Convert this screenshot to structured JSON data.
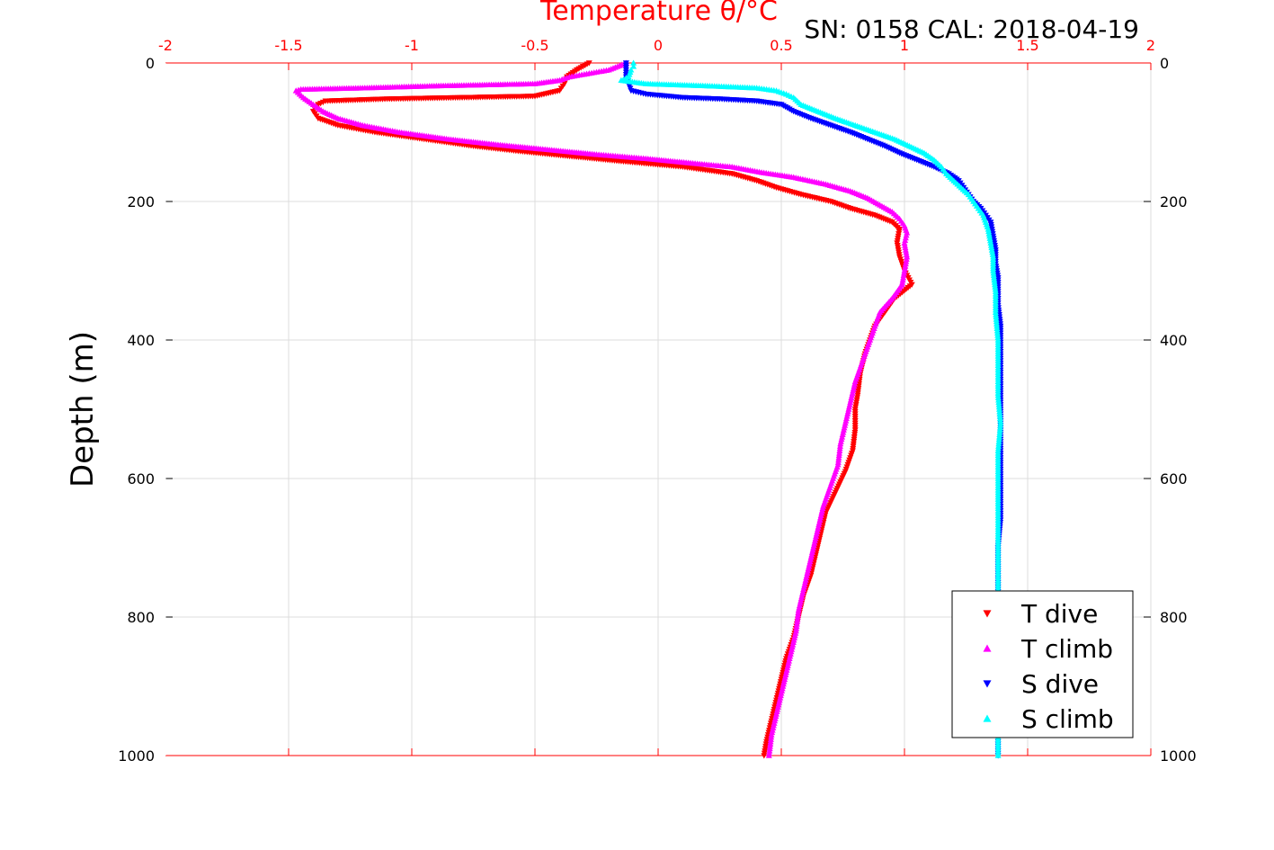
{
  "chart_data": {
    "type": "scatter",
    "title": "Temperature θ/°C",
    "subtitle": "SN: 0158  CAL: 2018-04-19",
    "xlabel": "Temperature θ/°C",
    "ylabel": "Depth (m)",
    "xlim": [
      -2,
      2
    ],
    "ylim": [
      0,
      1000
    ],
    "y_reversed": true,
    "grid": true,
    "legend_position": "bottom-right",
    "x_ticks": [
      "-2",
      "-1.5",
      "-1",
      "-0.5",
      "0",
      "0.5",
      "1",
      "1.5",
      "2"
    ],
    "y_ticks": [
      "0",
      "200",
      "400",
      "600",
      "800",
      "1000"
    ],
    "colors": {
      "t_dive": "#ff0000",
      "t_climb": "#ff00ff",
      "s_dive": "#0000ff",
      "s_climb": "#00ffff",
      "axis_top": "#ff0000",
      "axis_left": "#000000"
    },
    "series": [
      {
        "name": "T dive",
        "marker": "triangle-down",
        "color": "#ff0000",
        "points": [
          [
            -0.28,
            0
          ],
          [
            -0.33,
            10
          ],
          [
            -0.37,
            20
          ],
          [
            -0.38,
            30
          ],
          [
            -0.4,
            40
          ],
          [
            -0.5,
            48
          ],
          [
            -1.1,
            52
          ],
          [
            -1.35,
            55
          ],
          [
            -1.38,
            60
          ],
          [
            -1.4,
            70
          ],
          [
            -1.38,
            80
          ],
          [
            -1.3,
            90
          ],
          [
            -1.15,
            100
          ],
          [
            -0.95,
            110
          ],
          [
            -0.75,
            120
          ],
          [
            -0.55,
            128
          ],
          [
            -0.35,
            135
          ],
          [
            -0.15,
            142
          ],
          [
            0.1,
            150
          ],
          [
            0.3,
            160
          ],
          [
            0.4,
            170
          ],
          [
            0.48,
            180
          ],
          [
            0.58,
            190
          ],
          [
            0.7,
            200
          ],
          [
            0.78,
            210
          ],
          [
            0.88,
            220
          ],
          [
            0.95,
            230
          ],
          [
            0.98,
            240
          ],
          [
            0.97,
            260
          ],
          [
            0.98,
            280
          ],
          [
            1.0,
            300
          ],
          [
            1.03,
            320
          ],
          [
            0.96,
            340
          ],
          [
            0.92,
            360
          ],
          [
            0.88,
            380
          ],
          [
            0.86,
            400
          ],
          [
            0.84,
            420
          ],
          [
            0.82,
            450
          ],
          [
            0.81,
            480
          ],
          [
            0.8,
            500
          ],
          [
            0.8,
            530
          ],
          [
            0.79,
            560
          ],
          [
            0.76,
            590
          ],
          [
            0.72,
            620
          ],
          [
            0.68,
            650
          ],
          [
            0.66,
            680
          ],
          [
            0.64,
            710
          ],
          [
            0.62,
            740
          ],
          [
            0.59,
            770
          ],
          [
            0.57,
            800
          ],
          [
            0.55,
            830
          ],
          [
            0.52,
            860
          ],
          [
            0.5,
            890
          ],
          [
            0.48,
            920
          ],
          [
            0.46,
            950
          ],
          [
            0.44,
            980
          ],
          [
            0.43,
            1000
          ]
        ]
      },
      {
        "name": "T climb",
        "marker": "triangle-up",
        "color": "#ff00ff",
        "points": [
          [
            -0.13,
            0
          ],
          [
            -0.2,
            10
          ],
          [
            -0.28,
            15
          ],
          [
            -0.36,
            20
          ],
          [
            -0.4,
            25
          ],
          [
            -0.5,
            30
          ],
          [
            -0.9,
            33
          ],
          [
            -1.2,
            36
          ],
          [
            -1.45,
            38
          ],
          [
            -1.47,
            40
          ],
          [
            -1.44,
            50
          ],
          [
            -1.4,
            60
          ],
          [
            -1.36,
            70
          ],
          [
            -1.3,
            80
          ],
          [
            -1.2,
            90
          ],
          [
            -1.05,
            100
          ],
          [
            -0.85,
            110
          ],
          [
            -0.65,
            118
          ],
          [
            -0.45,
            125
          ],
          [
            -0.25,
            132
          ],
          [
            -0.05,
            138
          ],
          [
            0.15,
            145
          ],
          [
            0.3,
            150
          ],
          [
            0.42,
            158
          ],
          [
            0.55,
            165
          ],
          [
            0.68,
            175
          ],
          [
            0.78,
            185
          ],
          [
            0.85,
            195
          ],
          [
            0.9,
            205
          ],
          [
            0.95,
            215
          ],
          [
            0.98,
            225
          ],
          [
            1.0,
            235
          ],
          [
            1.01,
            245
          ],
          [
            1.0,
            260
          ],
          [
            1.01,
            280
          ],
          [
            1.0,
            300
          ],
          [
            0.99,
            320
          ],
          [
            0.95,
            340
          ],
          [
            0.9,
            360
          ],
          [
            0.88,
            380
          ],
          [
            0.86,
            400
          ],
          [
            0.83,
            430
          ],
          [
            0.8,
            460
          ],
          [
            0.78,
            490
          ],
          [
            0.76,
            520
          ],
          [
            0.74,
            550
          ],
          [
            0.73,
            580
          ],
          [
            0.7,
            610
          ],
          [
            0.67,
            640
          ],
          [
            0.65,
            670
          ],
          [
            0.63,
            700
          ],
          [
            0.61,
            730
          ],
          [
            0.59,
            760
          ],
          [
            0.57,
            790
          ],
          [
            0.56,
            820
          ],
          [
            0.54,
            850
          ],
          [
            0.52,
            880
          ],
          [
            0.5,
            910
          ],
          [
            0.48,
            940
          ],
          [
            0.46,
            970
          ],
          [
            0.45,
            1000
          ]
        ]
      },
      {
        "name": "S dive",
        "marker": "triangle-down",
        "color": "#0000ff",
        "points": [
          [
            -0.13,
            0
          ],
          [
            -0.13,
            10
          ],
          [
            -0.13,
            20
          ],
          [
            -0.12,
            30
          ],
          [
            -0.11,
            40
          ],
          [
            -0.05,
            45
          ],
          [
            0.1,
            50
          ],
          [
            0.25,
            52
          ],
          [
            0.4,
            55
          ],
          [
            0.5,
            60
          ],
          [
            0.55,
            70
          ],
          [
            0.62,
            80
          ],
          [
            0.7,
            90
          ],
          [
            0.78,
            100
          ],
          [
            0.85,
            110
          ],
          [
            0.92,
            120
          ],
          [
            0.98,
            130
          ],
          [
            1.05,
            140
          ],
          [
            1.12,
            150
          ],
          [
            1.18,
            160
          ],
          [
            1.22,
            170
          ],
          [
            1.24,
            180
          ],
          [
            1.26,
            190
          ],
          [
            1.28,
            200
          ],
          [
            1.31,
            210
          ],
          [
            1.33,
            220
          ],
          [
            1.35,
            230
          ],
          [
            1.36,
            250
          ],
          [
            1.37,
            270
          ],
          [
            1.37,
            290
          ],
          [
            1.38,
            310
          ],
          [
            1.38,
            330
          ],
          [
            1.38,
            350
          ],
          [
            1.39,
            380
          ],
          [
            1.39,
            420
          ],
          [
            1.39,
            460
          ],
          [
            1.39,
            500
          ],
          [
            1.39,
            540
          ],
          [
            1.39,
            580
          ],
          [
            1.39,
            620
          ],
          [
            1.39,
            660
          ],
          [
            1.38,
            700
          ],
          [
            1.38,
            740
          ],
          [
            1.38,
            780
          ],
          [
            1.38,
            820
          ],
          [
            1.38,
            860
          ],
          [
            1.38,
            900
          ],
          [
            1.38,
            940
          ],
          [
            1.38,
            980
          ],
          [
            1.38,
            1000
          ]
        ]
      },
      {
        "name": "S climb",
        "marker": "triangle-up",
        "color": "#00ffff",
        "points": [
          [
            -0.1,
            0
          ],
          [
            -0.1,
            5
          ],
          [
            -0.11,
            10
          ],
          [
            -0.12,
            20
          ],
          [
            -0.15,
            25
          ],
          [
            -0.05,
            30
          ],
          [
            0.2,
            33
          ],
          [
            0.4,
            36
          ],
          [
            0.48,
            40
          ],
          [
            0.52,
            45
          ],
          [
            0.55,
            50
          ],
          [
            0.58,
            60
          ],
          [
            0.65,
            70
          ],
          [
            0.72,
            80
          ],
          [
            0.8,
            90
          ],
          [
            0.88,
            100
          ],
          [
            0.96,
            110
          ],
          [
            1.02,
            120
          ],
          [
            1.08,
            130
          ],
          [
            1.12,
            140
          ],
          [
            1.15,
            150
          ],
          [
            1.17,
            160
          ],
          [
            1.2,
            170
          ],
          [
            1.23,
            180
          ],
          [
            1.26,
            190
          ],
          [
            1.28,
            200
          ],
          [
            1.3,
            210
          ],
          [
            1.32,
            220
          ],
          [
            1.33,
            230
          ],
          [
            1.34,
            240
          ],
          [
            1.35,
            260
          ],
          [
            1.36,
            280
          ],
          [
            1.36,
            300
          ],
          [
            1.37,
            330
          ],
          [
            1.37,
            360
          ],
          [
            1.38,
            400
          ],
          [
            1.38,
            440
          ],
          [
            1.38,
            480
          ],
          [
            1.39,
            520
          ],
          [
            1.38,
            560
          ],
          [
            1.38,
            600
          ],
          [
            1.38,
            640
          ],
          [
            1.38,
            680
          ],
          [
            1.38,
            720
          ],
          [
            1.38,
            760
          ],
          [
            1.38,
            800
          ],
          [
            1.38,
            840
          ],
          [
            1.38,
            880
          ],
          [
            1.38,
            920
          ],
          [
            1.38,
            960
          ],
          [
            1.38,
            1000
          ]
        ]
      }
    ]
  }
}
